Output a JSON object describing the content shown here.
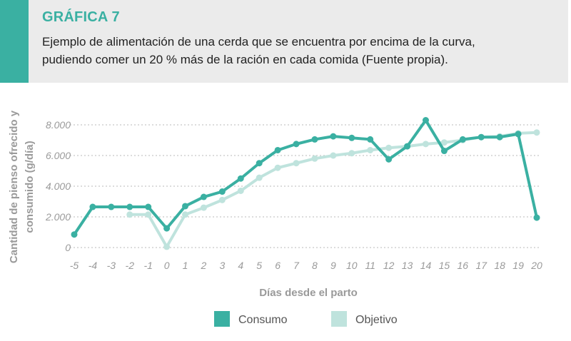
{
  "header": {
    "label": "GRÁFICA 7",
    "caption_line1": "Ejemplo de alimentación de una cerda que se encuentra por encima de la curva,",
    "caption_line2": "pudiendo comer un 20 % más de la ración en cada comida (Fuente propia)."
  },
  "colors": {
    "accent": "#3ab0a2",
    "consumo": "#3ab0a2",
    "objetivo": "#bfe3dd",
    "header_bg": "#ebebeb"
  },
  "chart_data": {
    "type": "line",
    "xlabel": "Días desde el parto",
    "ylabel": "Cantidad de pienso ofrecido y consumido (g/día)",
    "ylabel_line1": "Cantidad de pienso ofrecido y",
    "ylabel_line2": "consumido (g/día)",
    "categories": [
      "-5",
      "-4",
      "-3",
      "-2",
      "-1",
      "0",
      "1",
      "2",
      "3",
      "4",
      "5",
      "6",
      "7",
      "8",
      "9",
      "10",
      "11",
      "12",
      "13",
      "14",
      "15",
      "16",
      "17",
      "18",
      "19",
      "20"
    ],
    "y_ticks": [
      {
        "value": 0,
        "label": "0"
      },
      {
        "value": 2000,
        "label": "2.000"
      },
      {
        "value": 4000,
        "label": "4.000"
      },
      {
        "value": 6000,
        "label": "6.000"
      },
      {
        "value": 8000,
        "label": "8.000"
      }
    ],
    "ylim": [
      0,
      8000
    ],
    "grid": true,
    "legend_position": "bottom",
    "series": [
      {
        "name": "Consumo",
        "color": "#3ab0a2",
        "values": [
          850,
          2650,
          2650,
          2650,
          2650,
          1250,
          2700,
          3300,
          3650,
          4500,
          5500,
          6350,
          6750,
          7050,
          7250,
          7150,
          7050,
          5750,
          6600,
          8300,
          6300,
          7050,
          7200,
          7200,
          7400,
          1950
        ]
      },
      {
        "name": "Objetivo",
        "color": "#bfe3dd",
        "values": [
          null,
          null,
          null,
          2150,
          2150,
          50,
          2150,
          2600,
          3100,
          3700,
          4550,
          5200,
          5500,
          5800,
          6000,
          6150,
          6350,
          6500,
          6600,
          6750,
          6850,
          7000,
          7200,
          7250,
          7450,
          7500
        ]
      }
    ]
  }
}
